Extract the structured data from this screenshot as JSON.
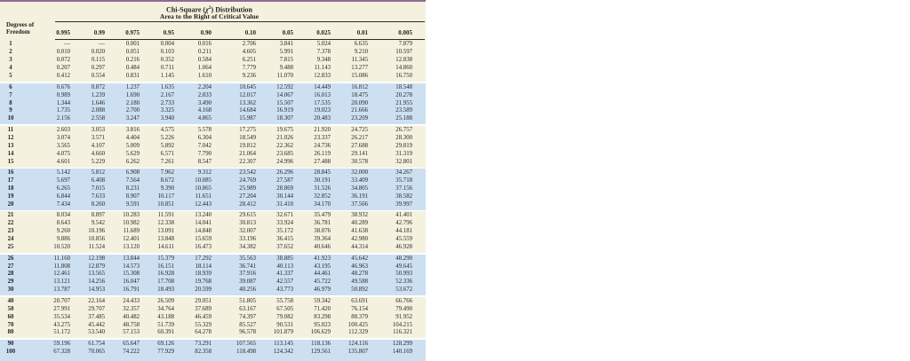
{
  "header": {
    "title_prefix": "Chi-Square (",
    "title_chi": "χ",
    "title_chi_sup": "2",
    "title_suffix": ") Distribution",
    "subtitle": "Area to the Right of Critical Value",
    "df_label_line1": "Degrees of",
    "df_label_line2": "Freedom"
  },
  "table": {
    "columns": [
      "0.995",
      "0.99",
      "0.975",
      "0.95",
      "0.90",
      "0.10",
      "0.05",
      "0.025",
      "0.01",
      "0.005"
    ],
    "bands": [
      [
        {
          "df": "1",
          "values": [
            "—",
            "—",
            "0.001",
            "0.004",
            "0.016",
            "2.706",
            "3.841",
            "5.024",
            "6.635",
            "7.879"
          ]
        },
        {
          "df": "2",
          "values": [
            "0.010",
            "0.020",
            "0.051",
            "0.103",
            "0.211",
            "4.605",
            "5.991",
            "7.378",
            "9.210",
            "10.597"
          ]
        },
        {
          "df": "3",
          "values": [
            "0.072",
            "0.115",
            "0.216",
            "0.352",
            "0.584",
            "6.251",
            "7.815",
            "9.348",
            "11.345",
            "12.838"
          ]
        },
        {
          "df": "4",
          "values": [
            "0.207",
            "0.297",
            "0.484",
            "0.711",
            "1.064",
            "7.779",
            "9.488",
            "11.143",
            "13.277",
            "14.860"
          ]
        },
        {
          "df": "5",
          "values": [
            "0.412",
            "0.554",
            "0.831",
            "1.145",
            "1.610",
            "9.236",
            "11.070",
            "12.833",
            "15.086",
            "16.750"
          ]
        }
      ],
      [
        {
          "df": "6",
          "values": [
            "0.676",
            "0.872",
            "1.237",
            "1.635",
            "2.204",
            "10.645",
            "12.592",
            "14.449",
            "16.812",
            "18.548"
          ]
        },
        {
          "df": "7",
          "values": [
            "0.989",
            "1.239",
            "1.690",
            "2.167",
            "2.833",
            "12.017",
            "14.067",
            "16.013",
            "18.475",
            "20.278"
          ]
        },
        {
          "df": "8",
          "values": [
            "1.344",
            "1.646",
            "2.180",
            "2.733",
            "3.490",
            "13.362",
            "15.507",
            "17.535",
            "20.090",
            "21.955"
          ]
        },
        {
          "df": "9",
          "values": [
            "1.735",
            "2.088",
            "2.700",
            "3.325",
            "4.168",
            "14.684",
            "16.919",
            "19.023",
            "21.666",
            "23.589"
          ]
        },
        {
          "df": "10",
          "values": [
            "2.156",
            "2.558",
            "3.247",
            "3.940",
            "4.865",
            "15.987",
            "18.307",
            "20.483",
            "23.209",
            "25.188"
          ]
        }
      ],
      [
        {
          "df": "11",
          "values": [
            "2.603",
            "3.053",
            "3.816",
            "4.575",
            "5.578",
            "17.275",
            "19.675",
            "21.920",
            "24.725",
            "26.757"
          ]
        },
        {
          "df": "12",
          "values": [
            "3.074",
            "3.571",
            "4.404",
            "5.226",
            "6.304",
            "18.549",
            "21.026",
            "23.337",
            "26.217",
            "28.300"
          ]
        },
        {
          "df": "13",
          "values": [
            "3.565",
            "4.107",
            "5.009",
            "5.892",
            "7.042",
            "19.812",
            "22.362",
            "24.736",
            "27.688",
            "29.819"
          ]
        },
        {
          "df": "14",
          "values": [
            "4.075",
            "4.660",
            "5.629",
            "6.571",
            "7.790",
            "21.064",
            "23.685",
            "26.119",
            "29.141",
            "31.319"
          ]
        },
        {
          "df": "15",
          "values": [
            "4.601",
            "5.229",
            "6.262",
            "7.261",
            "8.547",
            "22.307",
            "24.996",
            "27.488",
            "30.578",
            "32.801"
          ]
        }
      ],
      [
        {
          "df": "16",
          "values": [
            "5.142",
            "5.812",
            "6.908",
            "7.962",
            "9.312",
            "23.542",
            "26.296",
            "28.845",
            "32.000",
            "34.267"
          ]
        },
        {
          "df": "17",
          "values": [
            "5.697",
            "6.408",
            "7.564",
            "8.672",
            "10.085",
            "24.769",
            "27.587",
            "30.191",
            "33.409",
            "35.718"
          ]
        },
        {
          "df": "18",
          "values": [
            "6.265",
            "7.015",
            "8.231",
            "9.390",
            "10.865",
            "25.989",
            "28.869",
            "31.526",
            "34.805",
            "37.156"
          ]
        },
        {
          "df": "19",
          "values": [
            "6.844",
            "7.633",
            "8.907",
            "10.117",
            "11.651",
            "27.204",
            "30.144",
            "32.852",
            "36.191",
            "38.582"
          ]
        },
        {
          "df": "20",
          "values": [
            "7.434",
            "8.260",
            "9.591",
            "10.851",
            "12.443",
            "28.412",
            "31.410",
            "34.170",
            "37.566",
            "39.997"
          ]
        }
      ],
      [
        {
          "df": "21",
          "values": [
            "8.034",
            "8.897",
            "10.283",
            "11.591",
            "13.240",
            "29.615",
            "32.671",
            "35.479",
            "38.932",
            "41.401"
          ]
        },
        {
          "df": "22",
          "values": [
            "8.643",
            "9.542",
            "10.982",
            "12.338",
            "14.041",
            "30.813",
            "33.924",
            "36.781",
            "40.289",
            "42.796"
          ]
        },
        {
          "df": "23",
          "values": [
            "9.260",
            "10.196",
            "11.689",
            "13.091",
            "14.848",
            "32.007",
            "35.172",
            "38.076",
            "41.638",
            "44.181"
          ]
        },
        {
          "df": "24",
          "values": [
            "9.886",
            "10.856",
            "12.401",
            "13.848",
            "15.659",
            "33.196",
            "36.415",
            "39.364",
            "42.980",
            "45.559"
          ]
        },
        {
          "df": "25",
          "values": [
            "10.520",
            "11.524",
            "13.120",
            "14.611",
            "16.473",
            "34.382",
            "37.652",
            "40.646",
            "44.314",
            "46.928"
          ]
        }
      ],
      [
        {
          "df": "26",
          "values": [
            "11.160",
            "12.198",
            "13.844",
            "15.379",
            "17.292",
            "35.563",
            "38.885",
            "41.923",
            "45.642",
            "48.290"
          ]
        },
        {
          "df": "27",
          "values": [
            "11.808",
            "12.879",
            "14.573",
            "16.151",
            "18.114",
            "36.741",
            "40.113",
            "43.195",
            "46.963",
            "49.645"
          ]
        },
        {
          "df": "28",
          "values": [
            "12.461",
            "13.565",
            "15.308",
            "16.928",
            "18.939",
            "37.916",
            "41.337",
            "44.461",
            "48.278",
            "50.993"
          ]
        },
        {
          "df": "29",
          "values": [
            "13.121",
            "14.256",
            "16.047",
            "17.708",
            "19.768",
            "39.087",
            "42.557",
            "45.722",
            "49.588",
            "52.336"
          ]
        },
        {
          "df": "30",
          "values": [
            "13.787",
            "14.953",
            "16.791",
            "18.493",
            "20.599",
            "40.256",
            "43.773",
            "46.979",
            "50.892",
            "53.672"
          ]
        }
      ],
      [
        {
          "df": "40",
          "values": [
            "20.707",
            "22.164",
            "24.433",
            "26.509",
            "29.051",
            "51.805",
            "55.758",
            "59.342",
            "63.691",
            "66.766"
          ]
        },
        {
          "df": "50",
          "values": [
            "27.991",
            "29.707",
            "32.357",
            "34.764",
            "37.689",
            "63.167",
            "67.505",
            "71.420",
            "76.154",
            "79.490"
          ]
        },
        {
          "df": "60",
          "values": [
            "35.534",
            "37.485",
            "40.482",
            "43.188",
            "46.459",
            "74.397",
            "79.082",
            "83.298",
            "88.379",
            "91.952"
          ]
        },
        {
          "df": "70",
          "values": [
            "43.275",
            "45.442",
            "48.758",
            "51.739",
            "55.329",
            "85.527",
            "90.531",
            "95.023",
            "100.425",
            "104.215"
          ]
        },
        {
          "df": "80",
          "values": [
            "51.172",
            "53.540",
            "57.153",
            "60.391",
            "64.278",
            "96.578",
            "101.879",
            "106.629",
            "112.329",
            "116.321"
          ]
        }
      ],
      [
        {
          "df": "90",
          "values": [
            "59.196",
            "61.754",
            "65.647",
            "69.126",
            "73.291",
            "107.565",
            "113.145",
            "118.136",
            "124.116",
            "128.299"
          ]
        },
        {
          "df": "100",
          "values": [
            "67.328",
            "70.065",
            "74.222",
            "77.929",
            "82.358",
            "118.498",
            "124.342",
            "129.561",
            "135.807",
            "140.169"
          ]
        }
      ]
    ]
  },
  "colors": {
    "band_cream": "#f5f1df",
    "band_blue": "#cde0f2",
    "top_rule": "#8d6c94",
    "rule": "#2b2b2b"
  }
}
